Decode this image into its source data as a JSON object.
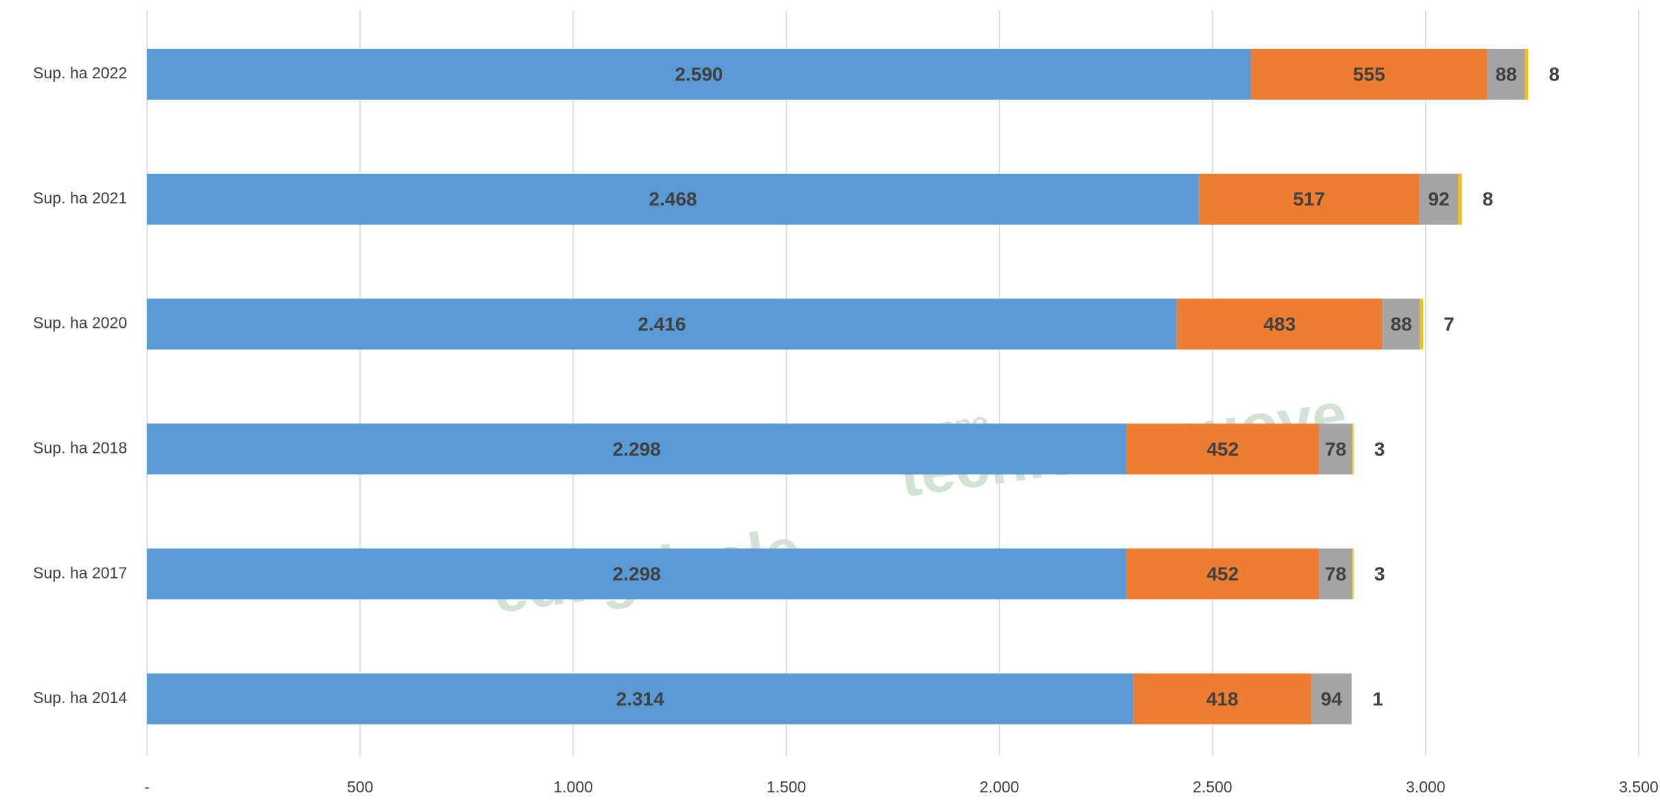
{
  "chart_data": {
    "type": "stacked_barh",
    "categories": [
      "Sup. ha 2022",
      "Sup. ha 2021",
      "Sup. ha 2020",
      "Sup. ha 2018",
      "Sup. ha 2017",
      "Sup. ha 2014"
    ],
    "series": [
      {
        "color": "#5b9bd5",
        "values": [
          2590,
          2468,
          2416,
          2298,
          2298,
          2314
        ],
        "value_labels": [
          "2.590",
          "2.468",
          "2.416",
          "2.298",
          "2.298",
          "2.314"
        ]
      },
      {
        "color": "#ed7d31",
        "values": [
          555,
          517,
          483,
          452,
          452,
          418
        ]
      },
      {
        "color": "#a5a5a5",
        "values": [
          88,
          92,
          88,
          78,
          78,
          94
        ]
      },
      {
        "color": "#ffc000",
        "values": [
          8,
          8,
          7,
          3,
          3,
          1
        ]
      }
    ],
    "xlim": [
      0,
      3500
    ],
    "xticks": [
      {
        "value": 0,
        "label": "-"
      },
      500,
      {
        "value": 1000,
        "label": "1.000"
      },
      {
        "value": 1500,
        "label": "1.500"
      },
      {
        "value": 2000,
        "label": "2.000"
      },
      {
        "value": 2500,
        "label": "2.500"
      },
      {
        "value": 3000,
        "label": "3.000"
      },
      {
        "value": 3500,
        "label": "3.500"
      }
    ],
    "grid": true
  },
  "watermark": {
    "brand": "edagricole",
    "group": "gruppo",
    "name": "tecniche nuove"
  }
}
